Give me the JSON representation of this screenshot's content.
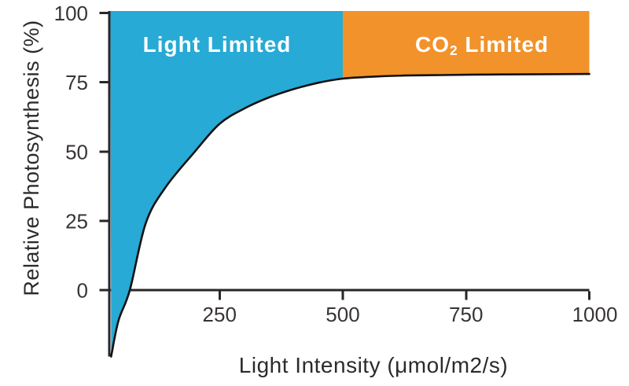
{
  "chart_data": {
    "type": "area",
    "title": "",
    "xlabel": "Light Intensity (μmol/m2/s)",
    "ylabel": "Relative Photosynthesis (%)",
    "x_tick_values": [
      250,
      500,
      750,
      1000
    ],
    "x_tick_labels": [
      "250",
      "500",
      "750",
      "1000"
    ],
    "y_tick_values": [
      100,
      75,
      50,
      25,
      0
    ],
    "y_tick_labels": [
      "100",
      "75",
      "50",
      "25",
      "0"
    ],
    "xlim": [
      28,
      1000
    ],
    "ylim": [
      0,
      100
    ],
    "grid": false,
    "legend": "none",
    "plateau_percent": 78,
    "curve": {
      "name": "photosynthesis-light-response",
      "x": [
        30,
        45,
        68,
        100,
        140,
        200,
        250,
        300,
        350,
        400,
        450,
        500,
        560,
        620,
        700,
        800,
        900,
        1000
      ],
      "y": [
        -24,
        -11,
        0,
        24,
        37,
        50,
        60,
        65.5,
        69.5,
        72.5,
        74.8,
        76.3,
        77,
        77.4,
        77.6,
        77.8,
        77.9,
        78
      ]
    },
    "regions": [
      {
        "id": "light-limited",
        "label": "Light Limited",
        "x_start": 28,
        "x_end": 500,
        "fill": "#27AAD5",
        "text_color": "#FFFFFF"
      },
      {
        "id": "co2-limited",
        "label_prefix": "CO",
        "label_sub": "2",
        "label_suffix": " Limited",
        "x_start": 500,
        "x_end": 1000,
        "fill": "#F1922B",
        "text_color": "#FFFFFF"
      }
    ]
  },
  "colors": {
    "curve": "#121212",
    "axis": "#2a2627",
    "tick_text": "#383435",
    "background": "#FFFFFF"
  }
}
